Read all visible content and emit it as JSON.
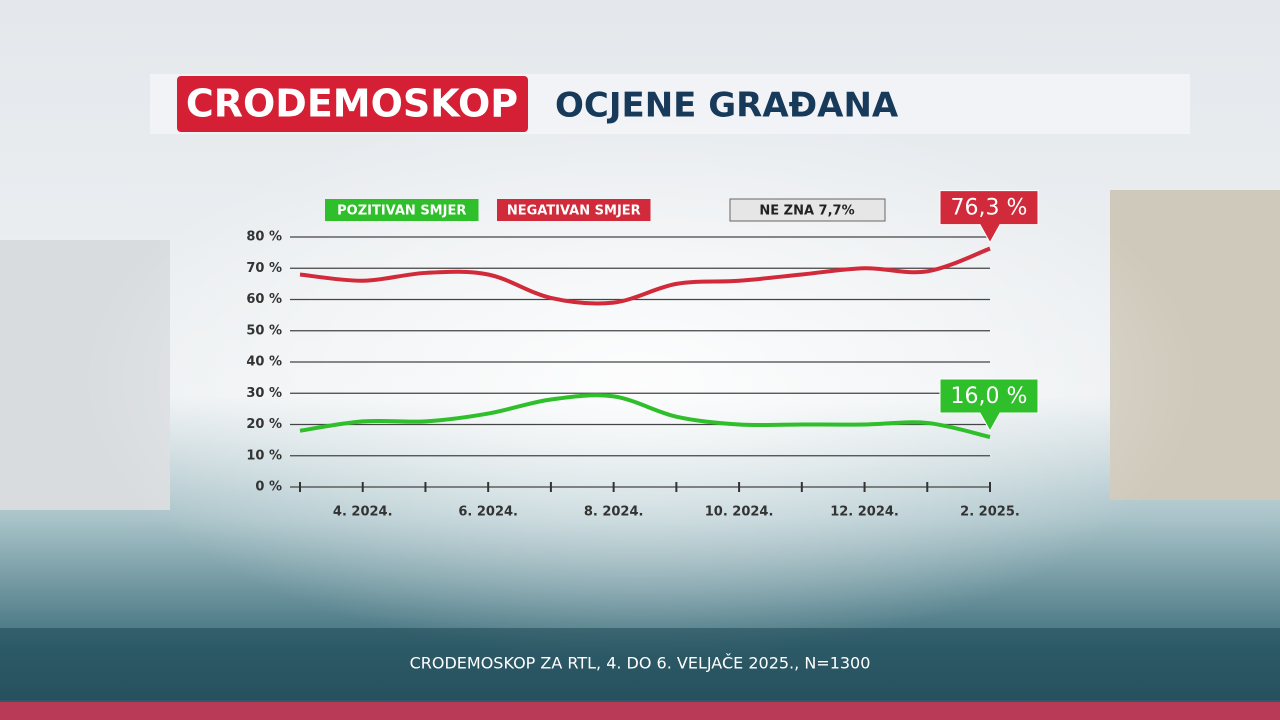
{
  "chart_data": {
    "type": "line",
    "brand": "CRODEMOSKOP",
    "title": "OCJENE GRAĐANA",
    "source": "CRODEMOSKOP ZA RTL, 4. DO 6. VELJAČE 2025., N=1300",
    "legend_note": "NE ZNA 7,7%",
    "categories": [
      null,
      "4. 2024.",
      null,
      "6. 2024.",
      null,
      "8. 2024.",
      null,
      "10. 2024.",
      null,
      "12. 2024.",
      null,
      "2. 2025."
    ],
    "series": [
      {
        "name": "POZITIVAN SMJER",
        "color": "#2fbf2a",
        "values": [
          18,
          21,
          21,
          23.5,
          28,
          29,
          22.5,
          20,
          20,
          20,
          20.5,
          16.0
        ],
        "value_labels": [
          null,
          null,
          null,
          null,
          null,
          null,
          null,
          null,
          null,
          null,
          null,
          "16,0 %"
        ]
      },
      {
        "name": "NEGATIVAN SMJER",
        "color": "#d12a3a",
        "values": [
          68,
          66,
          68.5,
          68,
          60.5,
          59,
          65,
          66,
          68,
          70,
          69,
          76.3
        ],
        "value_labels": [
          null,
          null,
          null,
          null,
          null,
          null,
          null,
          null,
          null,
          null,
          null,
          "76,3 %"
        ]
      }
    ],
    "ylim": [
      0,
      80
    ],
    "yticks": [
      {
        "value": 0,
        "label": "0 %"
      },
      {
        "value": 10,
        "label": "10 %"
      },
      {
        "value": 20,
        "label": "20 %"
      },
      {
        "value": 30,
        "label": "30 %"
      },
      {
        "value": 40,
        "label": "40 %"
      },
      {
        "value": 50,
        "label": "50 %"
      },
      {
        "value": 60,
        "label": "60 %"
      },
      {
        "value": 70,
        "label": "70 %"
      },
      {
        "value": 80,
        "label": "80 %"
      }
    ],
    "grid": true
  }
}
